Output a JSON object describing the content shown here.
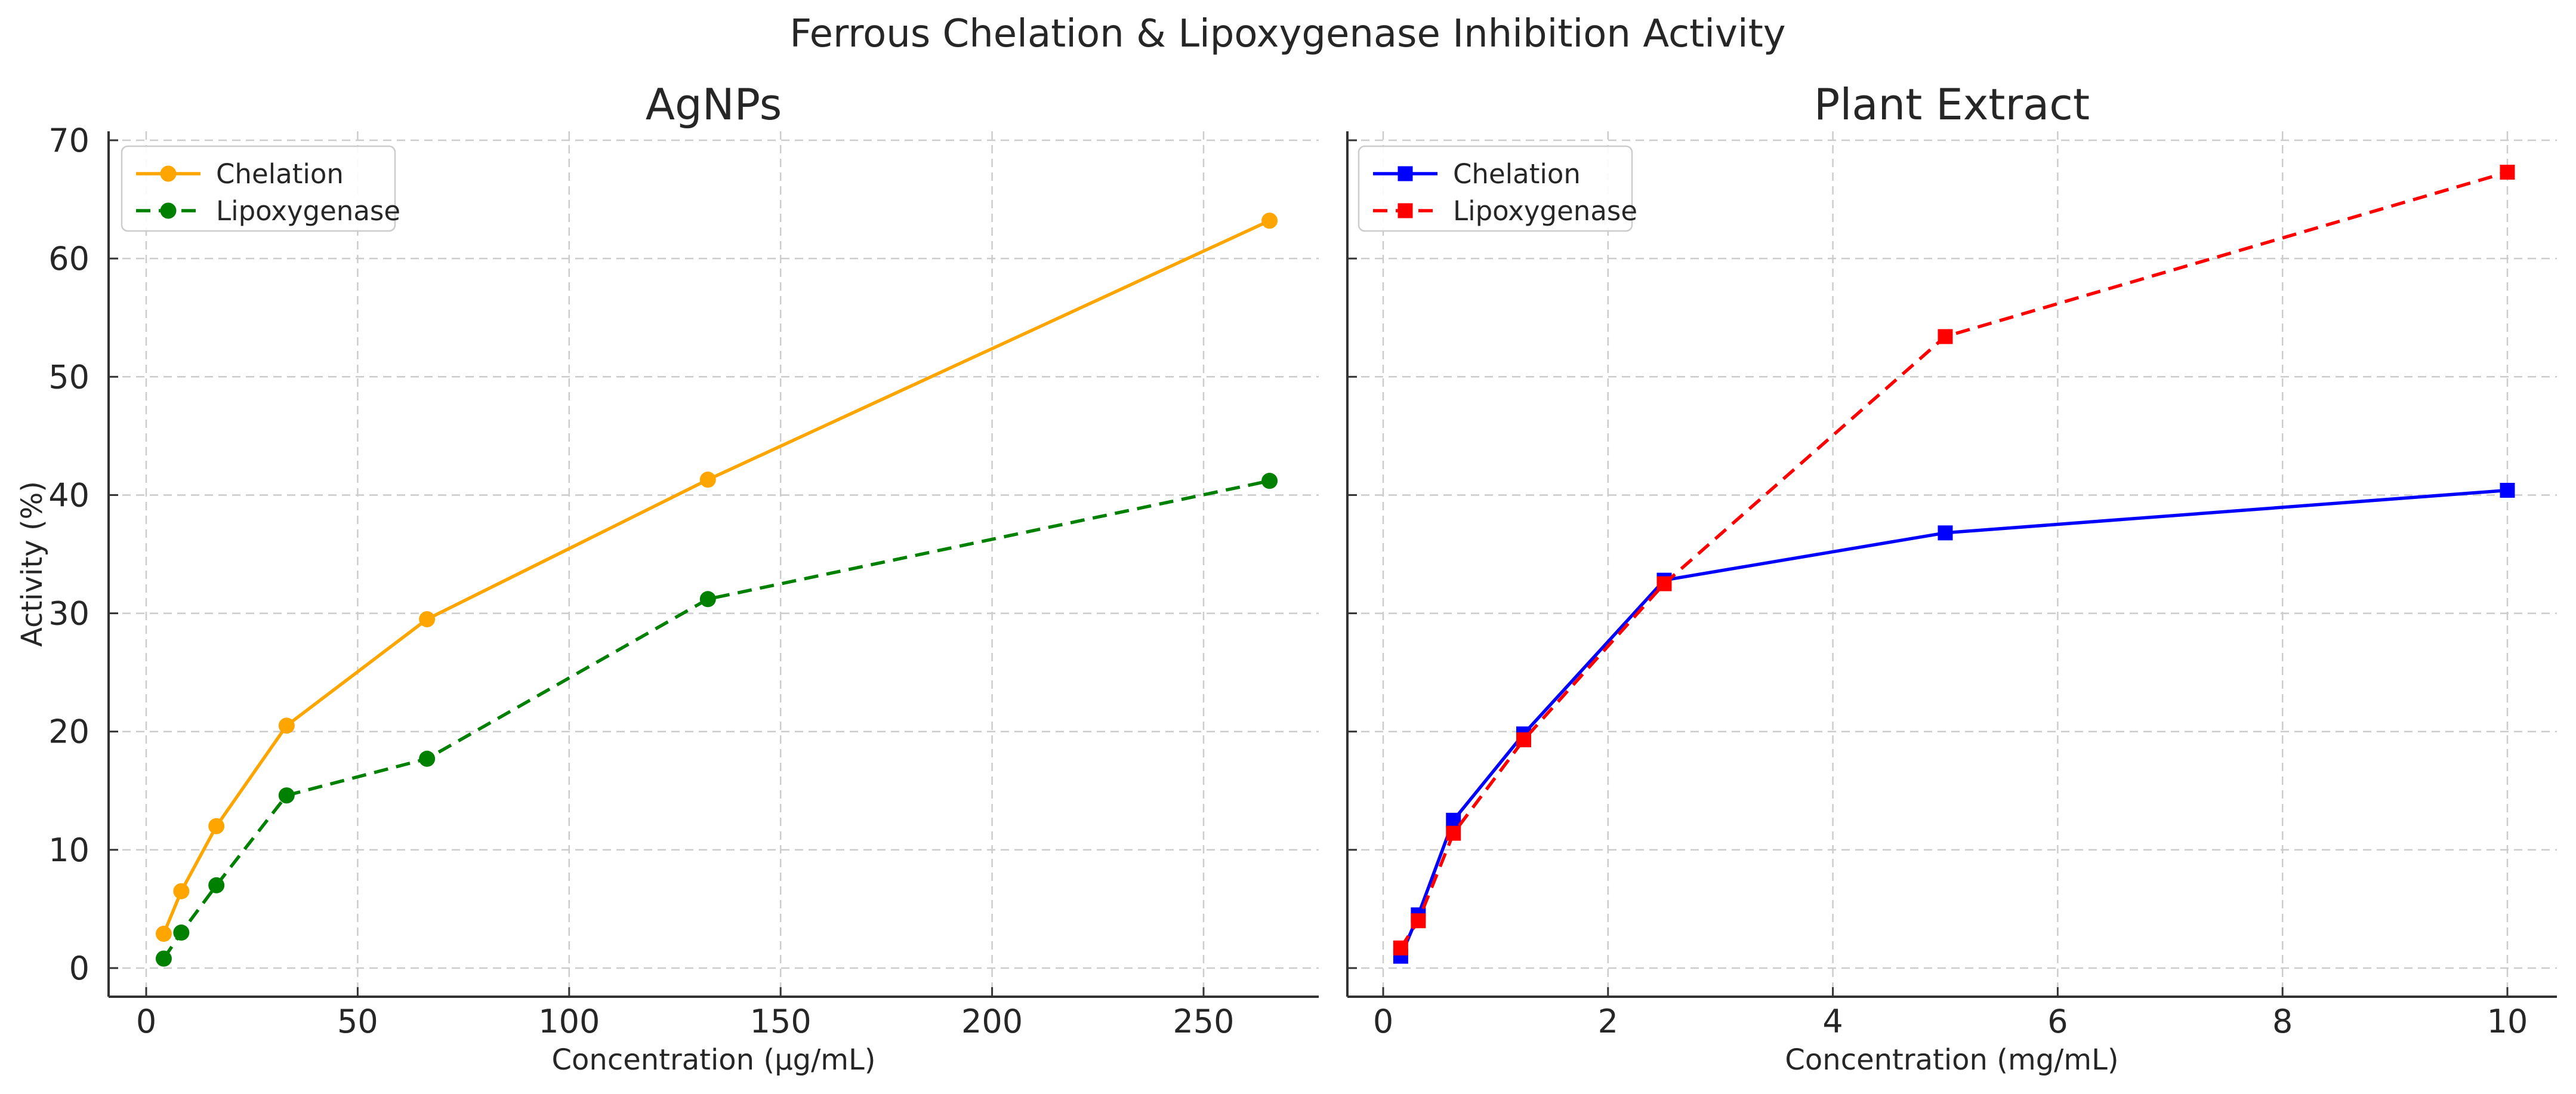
{
  "suptitle": "Ferrous Chelation & Lipoxygenase Inhibition Activity",
  "style": {
    "background": "#ffffff",
    "text_color": "#262626",
    "grid_color": "#cccccc",
    "axis_color": "#333333"
  },
  "chart_data": [
    {
      "type": "line",
      "title": "AgNPs",
      "xlabel": "Concentration (µg/mL)",
      "ylabel": "Activity (%)",
      "x": [
        4.15,
        8.3,
        16.6,
        33.2,
        66.4,
        132.8,
        265.6
      ],
      "series": [
        {
          "name": "Chelation",
          "color": "#FFA500",
          "linestyle": "solid",
          "marker": "circle",
          "values": [
            2.9,
            6.5,
            12.0,
            20.5,
            29.5,
            41.3,
            63.2
          ]
        },
        {
          "name": "Lipoxygenase",
          "color": "#008000",
          "linestyle": "dashed",
          "marker": "circle",
          "values": [
            0.8,
            3.0,
            7.0,
            14.6,
            17.7,
            31.2,
            41.2
          ]
        }
      ],
      "xticks": [
        0,
        50,
        100,
        150,
        200,
        250
      ],
      "yticks": [
        0,
        10,
        20,
        30,
        40,
        50,
        60,
        70
      ],
      "xlim": [
        -9,
        277
      ],
      "ylim": [
        -2.5,
        70.5
      ],
      "grid": true,
      "legend_position": "upper left",
      "y_tick_labels_visible": true
    },
    {
      "type": "line",
      "title": "Plant Extract",
      "xlabel": "Concentration (mg/mL)",
      "ylabel": "",
      "x": [
        0.156,
        0.3125,
        0.625,
        1.25,
        2.5,
        5,
        10
      ],
      "series": [
        {
          "name": "Chelation",
          "color": "#0000FF",
          "linestyle": "solid",
          "marker": "square",
          "values": [
            1.0,
            4.5,
            12.5,
            19.8,
            32.8,
            36.8,
            40.4
          ]
        },
        {
          "name": "Lipoxygenase",
          "color": "#FF0000",
          "linestyle": "dashed",
          "marker": "square",
          "values": [
            1.7,
            4.0,
            11.4,
            19.3,
            32.5,
            53.4,
            67.3
          ]
        }
      ],
      "xticks": [
        0,
        2,
        4,
        6,
        8,
        10
      ],
      "yticks": [
        0,
        10,
        20,
        30,
        40,
        50,
        60,
        70
      ],
      "xlim": [
        -0.33,
        10.45
      ],
      "ylim": [
        -2.5,
        70.5
      ],
      "grid": true,
      "legend_position": "upper left",
      "y_tick_labels_visible": false
    }
  ]
}
